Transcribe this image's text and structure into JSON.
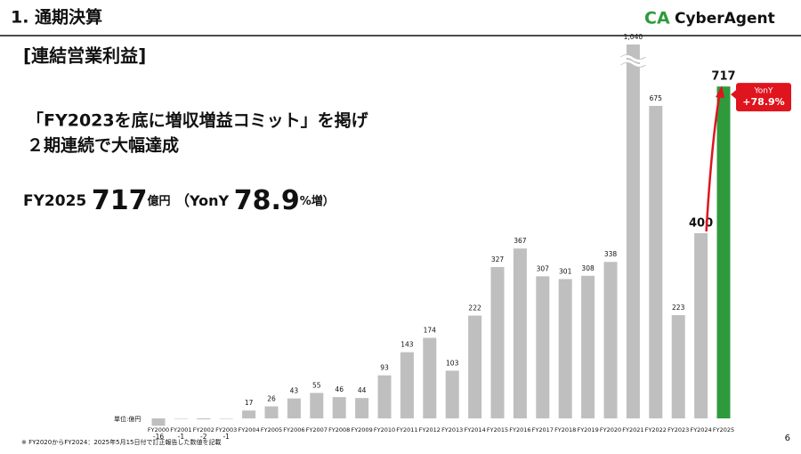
{
  "header": {
    "title": "1. 通期決算"
  },
  "logo": {
    "mark": "CA",
    "name": "CyberAgent"
  },
  "subtitle": "[連結営業利益]",
  "headline": {
    "line1": "「FY2023を底に増収増益コミット」を掲げ",
    "line2": "２期連続で大幅達成"
  },
  "summary": {
    "period": "FY2025",
    "amount": "717",
    "amount_unit": "億円",
    "yony_open": "（YonY",
    "rate": "78.9",
    "rate_unit": "%増）"
  },
  "callout": {
    "label": "YonY",
    "value": "+78.9%"
  },
  "unit_note": "単位:億円",
  "footnote": "※ FY2020からFY2024：2025年5月15日付で訂正報告した数値を記載",
  "page_number": "6",
  "chart_data": {
    "type": "bar",
    "categories": [
      "FY2000",
      "FY2001",
      "FY2002",
      "FY2003",
      "FY2004",
      "FY2005",
      "FY2006",
      "FY2007",
      "FY2008",
      "FY2009",
      "FY2010",
      "FY2011",
      "FY2012",
      "FY2013",
      "FY2014",
      "FY2015",
      "FY2016",
      "FY2017",
      "FY2018",
      "FY2019",
      "FY2020",
      "FY2021",
      "FY2022",
      "FY2023",
      "FY2024",
      "FY2025"
    ],
    "values": [
      -16,
      -1,
      -2,
      -1,
      17,
      26,
      43,
      55,
      46,
      44,
      93,
      143,
      174,
      103,
      222,
      327,
      367,
      307,
      301,
      308,
      338,
      1040,
      675,
      223,
      400,
      717
    ],
    "value_labels": [
      "-16",
      "-1",
      "-2",
      "-1",
      "17",
      "26",
      "43",
      "55",
      "46",
      "44",
      "93",
      "143",
      "174",
      "103",
      "222",
      "327",
      "367",
      "307",
      "301",
      "308",
      "338",
      "1,040",
      "675",
      "223",
      "400",
      "717"
    ],
    "colors": [
      "#bfbfbf",
      "#bfbfbf",
      "#bfbfbf",
      "#bfbfbf",
      "#bfbfbf",
      "#bfbfbf",
      "#bfbfbf",
      "#bfbfbf",
      "#bfbfbf",
      "#bfbfbf",
      "#bfbfbf",
      "#bfbfbf",
      "#bfbfbf",
      "#bfbfbf",
      "#bfbfbf",
      "#bfbfbf",
      "#bfbfbf",
      "#bfbfbf",
      "#bfbfbf",
      "#bfbfbf",
      "#bfbfbf",
      "#bfbfbf",
      "#bfbfbf",
      "#bfbfbf",
      "#bfbfbf",
      "#2e9a3c"
    ],
    "axis_break": true
  }
}
